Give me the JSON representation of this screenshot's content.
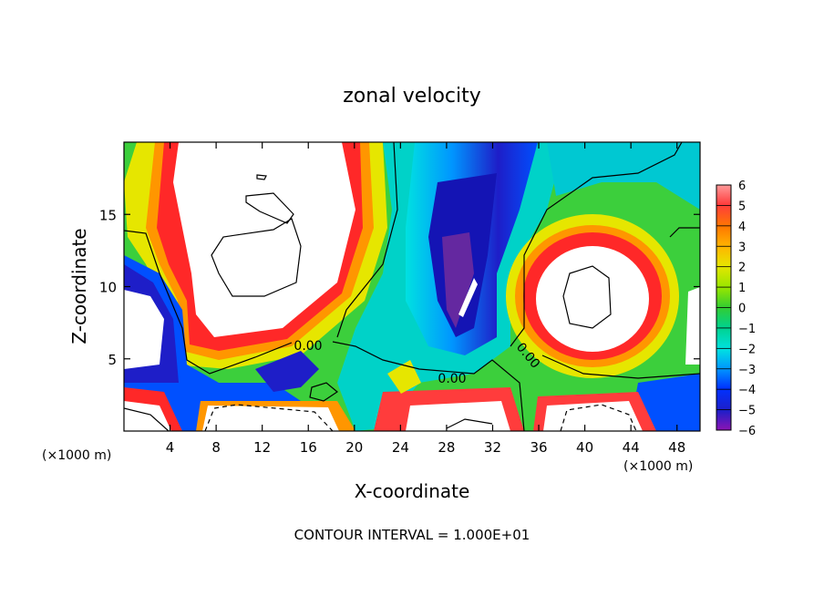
{
  "chart_data": {
    "type": "heatmap",
    "title": "zonal velocity",
    "xlabel": "X-coordinate",
    "ylabel": "Z-coordinate",
    "x_unit": "(×1000 m)",
    "x_unit_right": "(×1000 m)",
    "footer": "CONTOUR INTERVAL = 1.000E+01",
    "xlim": [
      0,
      50
    ],
    "ylim": [
      0,
      20
    ],
    "xticks": [
      "4",
      "8",
      "12",
      "16",
      "20",
      "24",
      "28",
      "32",
      "36",
      "40",
      "44",
      "48"
    ],
    "yticks": [
      "5",
      "10",
      "15"
    ],
    "colorbar": {
      "ticks": [
        "6",
        "5",
        "4",
        "3",
        "2",
        "1",
        "0",
        "−1",
        "−2",
        "−3",
        "−4",
        "−5",
        "−6"
      ],
      "range": [
        -6,
        6
      ]
    },
    "contour_labels": [
      "0.00",
      "0.00",
      "0.00"
    ],
    "white_regions": "values above colorbar max (>6)"
  }
}
